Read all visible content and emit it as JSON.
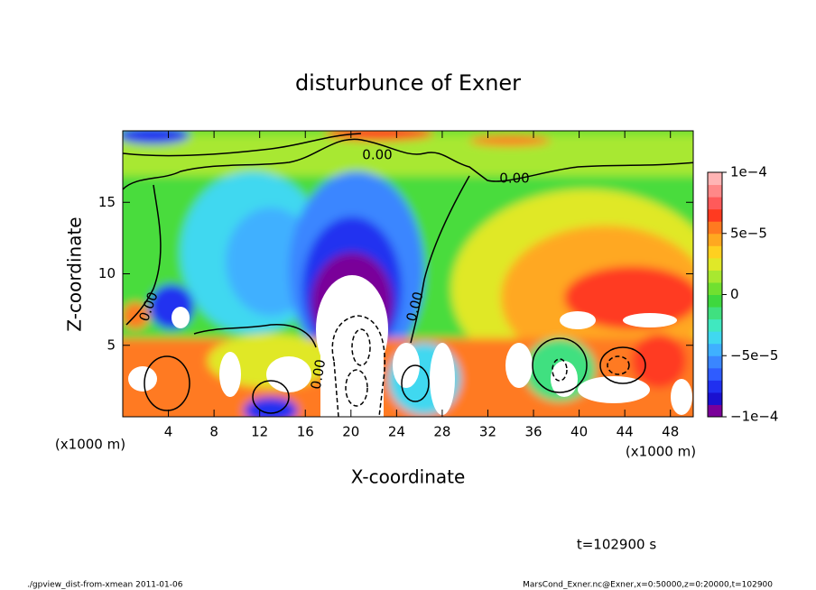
{
  "chart_data": {
    "type": "contour",
    "title": "disturbunce of Exner",
    "x_label": "X-coordinate",
    "y_label": "Z-coordinate",
    "x_unit": "(x1000 m)",
    "y_unit": "(x1000 m)",
    "xlim": [
      0,
      50
    ],
    "xticks": [
      4,
      8,
      12,
      16,
      20,
      24,
      28,
      32,
      36,
      40,
      44,
      48
    ],
    "ylim": [
      0,
      20
    ],
    "yticks": [
      5,
      10,
      15
    ],
    "contour_levels": [
      {
        "value": 0,
        "label": "0.00"
      }
    ],
    "colorbar": {
      "lim": [
        -0.0001,
        0.0001
      ],
      "ticks": [
        {
          "value": -0.0001,
          "label": "−1e−4"
        },
        {
          "value": -5e-05,
          "label": "−5e−5"
        },
        {
          "value": 0,
          "label": "0"
        },
        {
          "value": 5e-05,
          "label": "5e−5"
        },
        {
          "value": 0.0001,
          "label": "1e−4"
        }
      ],
      "colors": [
        "#7a0099",
        "#1a10d0",
        "#2030f0",
        "#2f5cff",
        "#3a86ff",
        "#3fb0ff",
        "#40d8f0",
        "#40e8c0",
        "#40e080",
        "#3ed83e",
        "#70e030",
        "#a8e830",
        "#e0e828",
        "#ffd020",
        "#ffa820",
        "#ff7a20",
        "#ff3a20",
        "#ff5a5a",
        "#ff8888",
        "#ffb4b4"
      ]
    },
    "annotation": "t=102900 s",
    "footer_left": "./gpview_dist-from-xmean  2011-01-06",
    "footer_right": "MarsCond_Exner.nc@Exner,x=0:50000,z=0:20000,t=102900"
  }
}
